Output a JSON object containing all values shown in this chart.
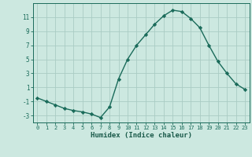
{
  "x": [
    0,
    1,
    2,
    3,
    4,
    5,
    6,
    7,
    8,
    9,
    10,
    11,
    12,
    13,
    14,
    15,
    16,
    17,
    18,
    19,
    20,
    21,
    22,
    23
  ],
  "y": [
    -0.5,
    -1.0,
    -1.5,
    -2.0,
    -2.3,
    -2.5,
    -2.8,
    -3.3,
    -1.8,
    2.2,
    5.0,
    7.0,
    8.5,
    10.0,
    11.2,
    12.0,
    11.8,
    10.8,
    9.5,
    7.0,
    4.7,
    3.0,
    1.5,
    0.7
  ],
  "line_color": "#1a6b5a",
  "marker": "D",
  "markersize": 2.2,
  "linewidth": 1.0,
  "xlabel": "Humidex (Indice chaleur)",
  "xlabel_fontsize": 6.5,
  "bg_color": "#cce8e0",
  "grid_color": "#aaccC4",
  "tick_color": "#1a6b5a",
  "label_color": "#1a5a4a",
  "ylim": [
    -4,
    13
  ],
  "xlim": [
    -0.5,
    23.5
  ],
  "yticks": [
    -3,
    -1,
    1,
    3,
    5,
    7,
    9,
    11
  ],
  "xticks": [
    0,
    1,
    2,
    3,
    4,
    5,
    6,
    7,
    8,
    9,
    10,
    11,
    12,
    13,
    14,
    15,
    16,
    17,
    18,
    19,
    20,
    21,
    22,
    23
  ],
  "tick_fontsize": 5.0
}
